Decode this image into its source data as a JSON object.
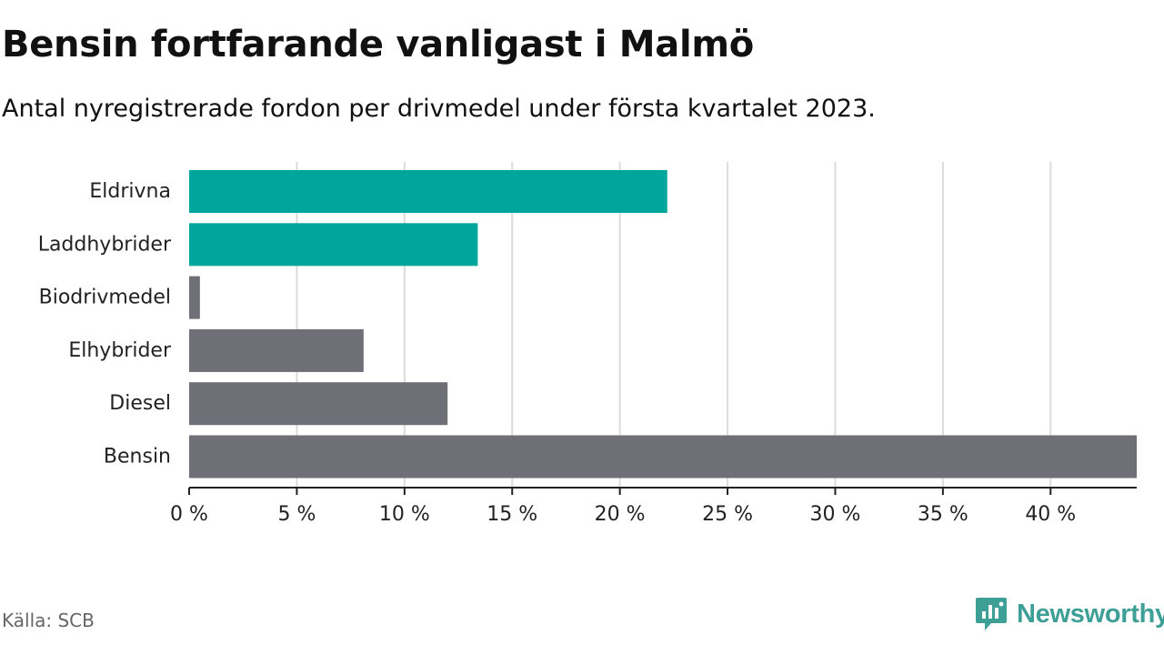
{
  "header": {
    "title": "Bensin fortfarande vanligast i Malmö",
    "subtitle": "Antal nyregistrerade fordon per drivmedel under första kvartalet 2023."
  },
  "footer": {
    "source": "Källa: SCB",
    "brand": "Newsworthy",
    "brand_icon": "newsworthy-logo-icon"
  },
  "colors": {
    "highlight": "#00a69b",
    "default": "#6f6f77",
    "grid": "#dcdcdc",
    "axis": "#222222",
    "brand": "#3e9f96"
  },
  "chart_data": {
    "type": "bar",
    "orientation": "horizontal",
    "categories": [
      "Eldrivna",
      "Laddhybrider",
      "Biodrivmedel",
      "Elhybrider",
      "Diesel",
      "Bensin"
    ],
    "values": [
      22.2,
      13.4,
      0.5,
      8.1,
      12.0,
      44.0
    ],
    "highlighted": [
      "Eldrivna",
      "Laddhybrider"
    ],
    "x_ticks": [
      0,
      5,
      10,
      15,
      20,
      25,
      30,
      35,
      40
    ],
    "x_tick_labels": [
      "0 %",
      "5 %",
      "10 %",
      "15 %",
      "20 %",
      "25 %",
      "30 %",
      "35 %",
      "40 %"
    ],
    "xlim": [
      0,
      44
    ],
    "grid": true
  }
}
